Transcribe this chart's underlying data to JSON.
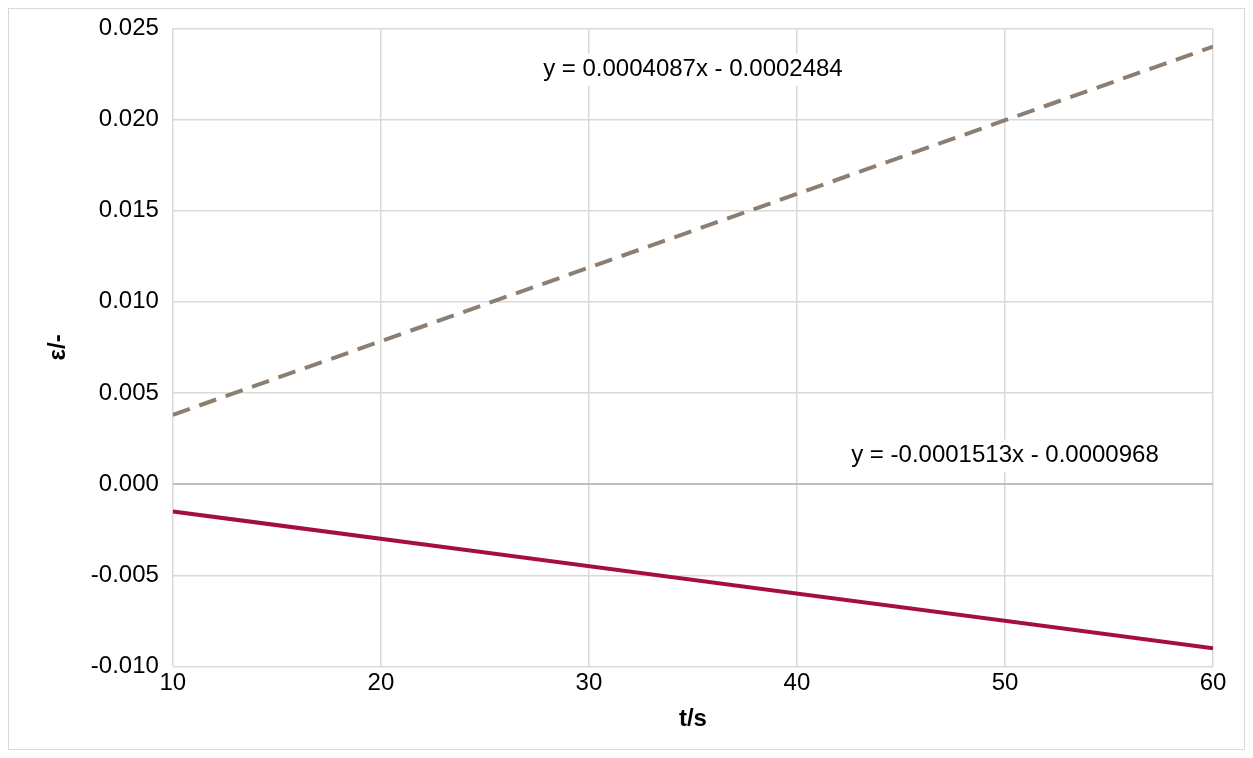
{
  "chart_data": {
    "type": "line",
    "xlabel": "t/s",
    "ylabel": "ε/-",
    "x": [
      10,
      60
    ],
    "series": [
      {
        "color": "#8c7f72",
        "values": [
          0.0038,
          0.024
        ],
        "line_style": "dashed"
      },
      {
        "color": "#a50f3c",
        "values": [
          -0.0015,
          -0.009
        ],
        "line_style": "solid"
      }
    ],
    "xlim": [
      10,
      60
    ],
    "xticks": [
      10,
      20,
      30,
      40,
      50,
      60
    ],
    "ylim": [
      -0.01,
      0.025
    ],
    "yticks": [
      {
        "value": -0.01,
        "label": "-0.010"
      },
      {
        "value": -0.005,
        "label": "-0.005"
      },
      {
        "value": 0,
        "label": "0.000"
      },
      {
        "value": 0.005,
        "label": "0.005"
      },
      {
        "value": 0.01,
        "label": "0.010"
      },
      {
        "value": 0.015,
        "label": "0.015"
      },
      {
        "value": 0.02,
        "label": "0.020"
      },
      {
        "value": 0.025,
        "label": "0.025"
      }
    ],
    "grid": true,
    "legend": false,
    "marker": "none",
    "annotations": [
      "y = 0.0004087x - 0.0002484",
      "y = -0.0001513x - 0.0000968"
    ]
  }
}
